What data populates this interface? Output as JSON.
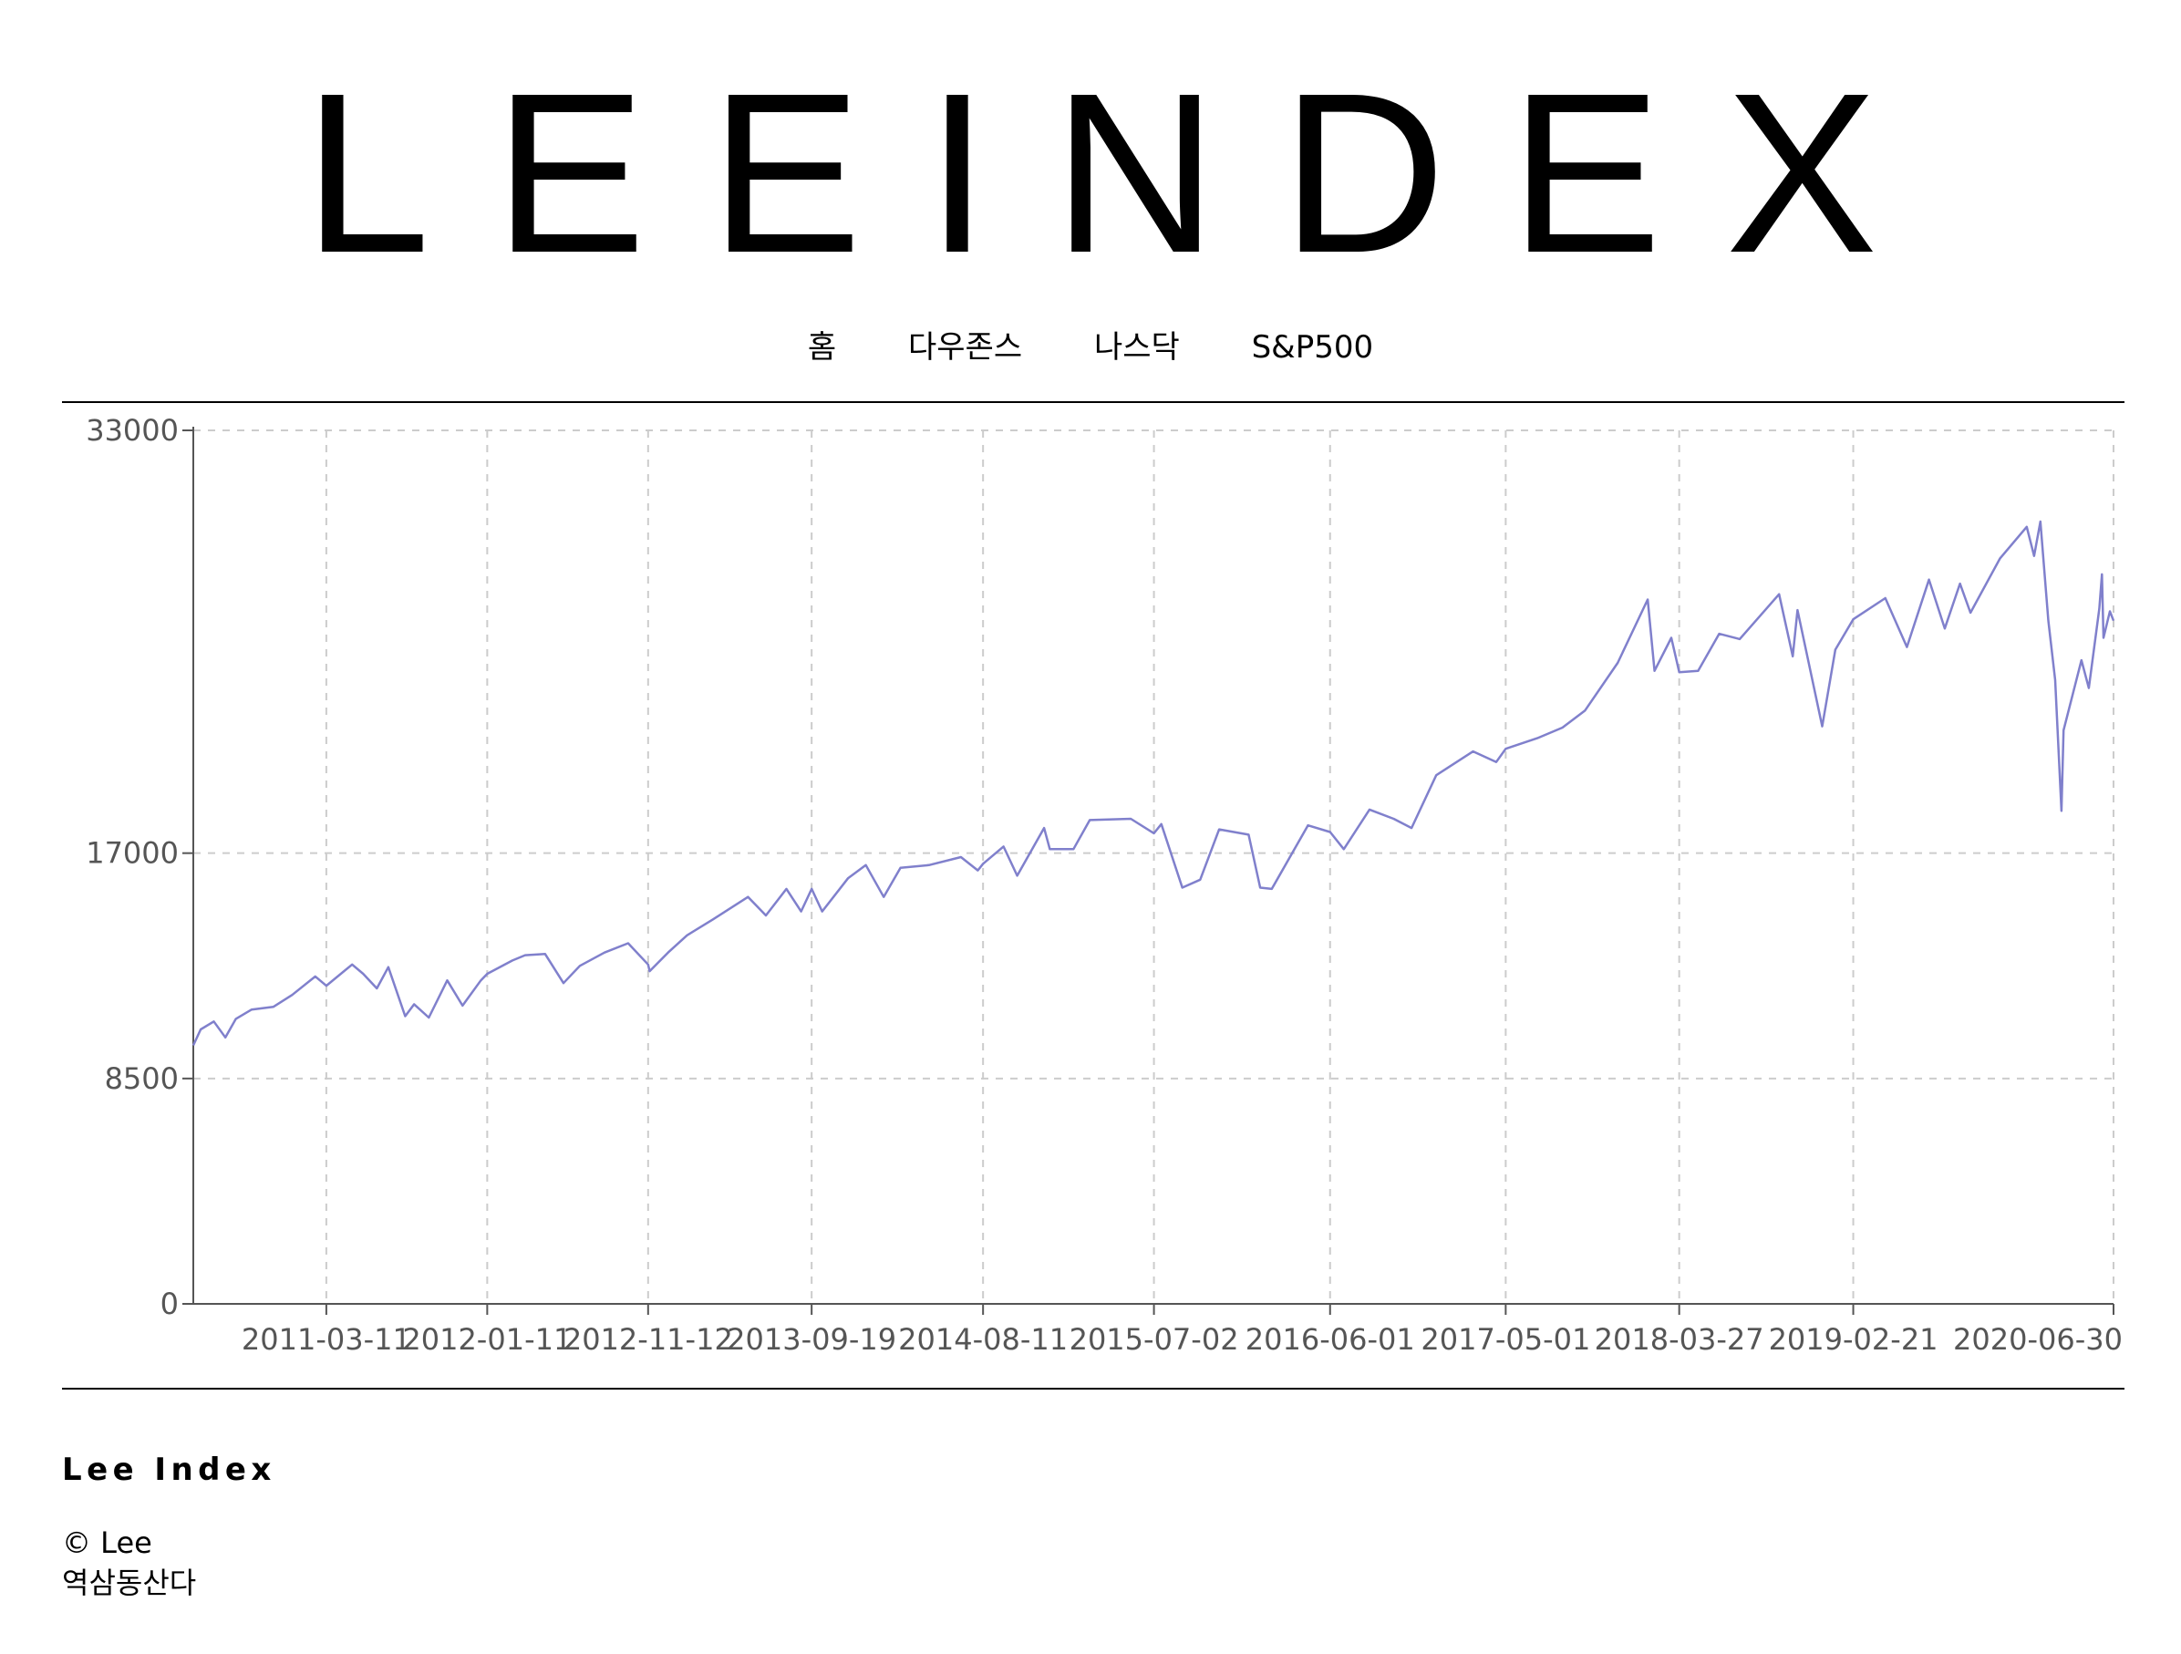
{
  "header": {
    "logo": "LEEINDEX"
  },
  "nav": {
    "items": [
      "홈",
      "다우존스",
      "나스닥",
      "S&P500"
    ]
  },
  "footer": {
    "brand": "Lee Index",
    "copyright": "© Lee",
    "location": "역삼동산다"
  },
  "colors": {
    "line": "#8080cc",
    "grid": "#cccccc",
    "axis": "#555555"
  },
  "chart_data": {
    "type": "line",
    "title": "",
    "xlabel": "",
    "ylabel": "",
    "y_ticks": [
      "0",
      "8500",
      "17000",
      "33000"
    ],
    "x_ticks": [
      "2011-03-11",
      "2012-01-11",
      "2012-11-12",
      "2013-09-19",
      "2014-08-11",
      "2015-07-02",
      "2016-06-01",
      "2017-05-01",
      "2018-03-27",
      "2019-02-21",
      "2020-06-30"
    ],
    "x_range": [
      "2010-07-01",
      "2020-06-30"
    ],
    "grid": true,
    "series": [
      {
        "points": [
          [
            "2010-07-01",
            9750
          ],
          [
            "2010-07-15",
            10350
          ],
          [
            "2010-08-09",
            10650
          ],
          [
            "2010-08-31",
            10050
          ],
          [
            "2010-09-20",
            10750
          ],
          [
            "2010-10-20",
            11100
          ],
          [
            "2010-11-30",
            11200
          ],
          [
            "2011-01-05",
            11650
          ],
          [
            "2011-02-18",
            12350
          ],
          [
            "2011-03-11",
            12000
          ],
          [
            "2011-04-29",
            12800
          ],
          [
            "2011-05-20",
            12450
          ],
          [
            "2011-06-15",
            11900
          ],
          [
            "2011-07-07",
            12700
          ],
          [
            "2011-08-08",
            10850
          ],
          [
            "2011-08-25",
            11300
          ],
          [
            "2011-09-22",
            10800
          ],
          [
            "2011-10-27",
            12200
          ],
          [
            "2011-11-25",
            11250
          ],
          [
            "2011-12-30",
            12200
          ],
          [
            "2012-01-11",
            12450
          ],
          [
            "2012-02-28",
            12950
          ],
          [
            "2012-03-23",
            13150
          ],
          [
            "2012-04-30",
            13200
          ],
          [
            "2012-06-04",
            12100
          ],
          [
            "2012-07-05",
            12750
          ],
          [
            "2012-08-21",
            13250
          ],
          [
            "2012-10-05",
            13600
          ],
          [
            "2012-11-12",
            12800
          ],
          [
            "2012-11-15",
            12550
          ],
          [
            "2012-12-20",
            13250
          ],
          [
            "2013-01-25",
            13900
          ],
          [
            "2013-03-15",
            14500
          ],
          [
            "2013-05-21",
            15350
          ],
          [
            "2013-06-24",
            14650
          ],
          [
            "2013-08-02",
            15650
          ],
          [
            "2013-08-30",
            14800
          ],
          [
            "2013-09-19",
            15650
          ],
          [
            "2013-10-09",
            14800
          ],
          [
            "2013-11-27",
            16050
          ],
          [
            "2013-12-31",
            16550
          ],
          [
            "2014-02-03",
            15350
          ],
          [
            "2014-03-07",
            16450
          ],
          [
            "2014-04-30",
            16550
          ],
          [
            "2014-06-30",
            16850
          ],
          [
            "2014-08-01",
            16350
          ],
          [
            "2014-08-11",
            16600
          ],
          [
            "2014-09-19",
            17250
          ],
          [
            "2014-10-15",
            16150
          ],
          [
            "2014-12-05",
            17950
          ],
          [
            "2014-12-16",
            17150
          ],
          [
            "2015-01-30",
            17150
          ],
          [
            "2015-03-02",
            18250
          ],
          [
            "2015-05-19",
            18300
          ],
          [
            "2015-07-02",
            17750
          ],
          [
            "2015-07-16",
            18100
          ],
          [
            "2015-08-25",
            15700
          ],
          [
            "2015-09-28",
            16000
          ],
          [
            "2015-11-03",
            17900
          ],
          [
            "2015-12-29",
            17700
          ],
          [
            "2016-01-20",
            15700
          ],
          [
            "2016-02-11",
            15650
          ],
          [
            "2016-04-20",
            18050
          ],
          [
            "2016-06-01",
            17800
          ],
          [
            "2016-06-27",
            17150
          ],
          [
            "2016-08-15",
            18650
          ],
          [
            "2016-09-30",
            18300
          ],
          [
            "2016-11-03",
            17950
          ],
          [
            "2016-12-20",
            19950
          ],
          [
            "2017-02-28",
            20850
          ],
          [
            "2017-04-13",
            20450
          ],
          [
            "2017-05-01",
            20950
          ],
          [
            "2017-06-30",
            21350
          ],
          [
            "2017-08-17",
            21750
          ],
          [
            "2017-09-29",
            22400
          ],
          [
            "2017-11-30",
            24200
          ],
          [
            "2018-01-26",
            26600
          ],
          [
            "2018-02-08",
            23900
          ],
          [
            "2018-03-12",
            25150
          ],
          [
            "2018-03-27",
            23850
          ],
          [
            "2018-05-02",
            23900
          ],
          [
            "2018-06-11",
            25300
          ],
          [
            "2018-07-20",
            25100
          ],
          [
            "2018-10-03",
            26800
          ],
          [
            "2018-10-29",
            24450
          ],
          [
            "2018-11-07",
            26200
          ],
          [
            "2018-12-24",
            21800
          ],
          [
            "2019-01-18",
            24700
          ],
          [
            "2019-02-21",
            25850
          ],
          [
            "2019-04-23",
            26650
          ],
          [
            "2019-06-03",
            24800
          ],
          [
            "2019-07-15",
            27350
          ],
          [
            "2019-08-14",
            25500
          ],
          [
            "2019-09-12",
            27200
          ],
          [
            "2019-10-02",
            26100
          ],
          [
            "2019-11-27",
            28150
          ],
          [
            "2020-01-17",
            29350
          ],
          [
            "2020-01-31",
            28250
          ],
          [
            "2020-02-12",
            29550
          ],
          [
            "2020-02-27",
            25800
          ],
          [
            "2020-03-11",
            23550
          ],
          [
            "2020-03-23",
            18600
          ],
          [
            "2020-03-27",
            21650
          ],
          [
            "2020-04-30",
            24300
          ],
          [
            "2020-05-14",
            23250
          ],
          [
            "2020-06-03",
            26250
          ],
          [
            "2020-06-08",
            27550
          ],
          [
            "2020-06-11",
            25150
          ],
          [
            "2020-06-23",
            26150
          ],
          [
            "2020-06-30",
            25800
          ]
        ]
      }
    ]
  }
}
